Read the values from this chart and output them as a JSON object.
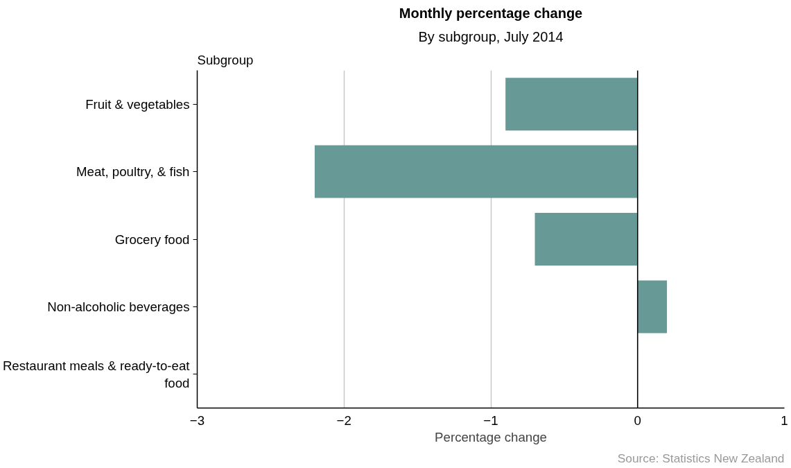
{
  "chart_data": {
    "type": "bar",
    "orientation": "horizontal",
    "title": "Monthly percentage change",
    "subtitle": "By subgroup, July 2014",
    "ylabel": "Subgroup",
    "xlabel": "Percentage change",
    "categories": [
      "Fruit & vegetables",
      "Meat, poultry, & fish",
      "Grocery food",
      "Non-alcoholic beverages",
      "Restaurant meals & ready-to-eat food"
    ],
    "values": [
      -0.9,
      -2.2,
      -0.7,
      0.2,
      0
    ],
    "color": "#679996",
    "xlim": [
      -3,
      1
    ],
    "xticks": [
      -3,
      -2,
      -1,
      0,
      1
    ],
    "grid": "x",
    "ref_lines": [
      {
        "axis": "x",
        "value": 0,
        "color": "#000000"
      }
    ],
    "annotations": [
      "Source: Statistics New Zealand"
    ]
  }
}
